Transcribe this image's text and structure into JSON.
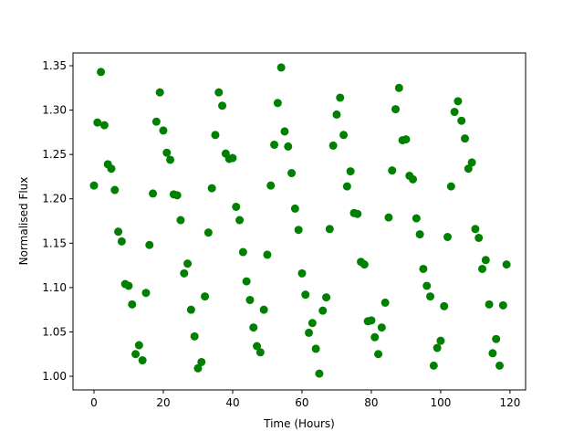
{
  "chart_data": {
    "type": "scatter",
    "xlabel": "Time (Hours)",
    "ylabel": "Normalised Flux",
    "color": "#008000",
    "x": [
      0,
      1,
      2,
      3,
      4,
      5,
      6,
      7,
      8,
      9,
      10,
      11,
      12,
      13,
      14,
      15,
      16,
      17,
      18,
      19,
      20,
      21,
      22,
      23,
      24,
      25,
      26,
      27,
      28,
      29,
      30,
      31,
      32,
      33,
      34,
      35,
      36,
      37,
      38,
      39,
      40,
      41,
      42,
      43,
      44,
      45,
      46,
      47,
      48,
      49,
      50,
      51,
      52,
      53,
      54,
      55,
      56,
      57,
      58,
      59,
      60,
      61,
      62,
      63,
      64,
      65,
      66,
      67,
      68,
      69,
      70,
      71,
      72,
      73,
      74,
      75,
      76,
      77,
      78,
      79,
      80,
      81,
      82,
      83,
      84,
      85,
      86,
      87,
      88,
      89,
      90,
      91,
      92,
      93,
      94,
      95,
      96,
      97,
      98,
      99,
      100,
      101,
      102,
      103,
      104,
      105,
      106,
      107,
      108,
      109,
      110,
      111,
      112,
      113,
      114,
      115,
      116,
      117,
      118,
      119
    ],
    "values": [
      1.215,
      1.286,
      1.343,
      1.283,
      1.239,
      1.234,
      1.21,
      1.163,
      1.152,
      1.104,
      1.102,
      1.081,
      1.025,
      1.035,
      1.018,
      1.094,
      1.148,
      1.206,
      1.287,
      1.32,
      1.277,
      1.252,
      1.244,
      1.205,
      1.204,
      1.176,
      1.116,
      1.127,
      1.075,
      1.045,
      1.009,
      1.016,
      1.09,
      1.162,
      1.212,
      1.272,
      1.32,
      1.305,
      1.251,
      1.245,
      1.246,
      1.191,
      1.176,
      1.14,
      1.107,
      1.086,
      1.055,
      1.034,
      1.027,
      1.075,
      1.137,
      1.215,
      1.261,
      1.308,
      1.348,
      1.276,
      1.259,
      1.229,
      1.189,
      1.165,
      1.116,
      1.092,
      1.049,
      1.06,
      1.031,
      1.003,
      1.074,
      1.089,
      1.166,
      1.26,
      1.295,
      1.314,
      1.272,
      1.214,
      1.231,
      1.184,
      1.183,
      1.129,
      1.126,
      1.062,
      1.063,
      1.044,
      1.025,
      1.055,
      1.083,
      1.179,
      1.232,
      1.301,
      1.325,
      1.266,
      1.267,
      1.226,
      1.222,
      1.178,
      1.16,
      1.121,
      1.102,
      1.09,
      1.012,
      1.032,
      1.04,
      1.079,
      1.157,
      1.214,
      1.298,
      1.31,
      1.288,
      1.268,
      1.234,
      1.241,
      1.166,
      1.156,
      1.121,
      1.131,
      1.081,
      1.026,
      1.042,
      1.012,
      1.08,
      1.126
    ],
    "xlim": [
      -6.05,
      124.5
    ],
    "xticks": [
      0,
      20,
      40,
      60,
      80,
      100,
      120
    ],
    "ylim": [
      0.9846,
      1.3644
    ],
    "yticks": [
      {
        "value": 1.0,
        "label": "1.00"
      },
      {
        "value": 1.05,
        "label": "1.05"
      },
      {
        "value": 1.1,
        "label": "1.10"
      },
      {
        "value": 1.15,
        "label": "1.15"
      },
      {
        "value": 1.2,
        "label": "1.20"
      },
      {
        "value": 1.25,
        "label": "1.25"
      },
      {
        "value": 1.3,
        "label": "1.30"
      },
      {
        "value": 1.35,
        "label": "1.35"
      }
    ],
    "grid": false
  }
}
